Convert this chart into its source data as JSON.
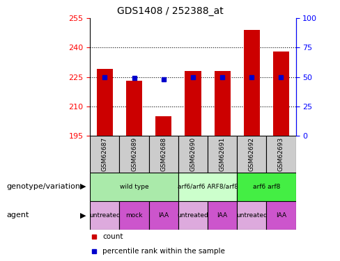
{
  "title": "GDS1408 / 252388_at",
  "samples": [
    "GSM62687",
    "GSM62689",
    "GSM62688",
    "GSM62690",
    "GSM62691",
    "GSM62692",
    "GSM62693"
  ],
  "bar_values": [
    229,
    223,
    205,
    228,
    228,
    249,
    238
  ],
  "percentile_values": [
    50,
    49,
    48,
    50,
    50,
    50,
    50
  ],
  "ylim_left": [
    195,
    255
  ],
  "ylim_right": [
    0,
    100
  ],
  "yticks_left": [
    195,
    210,
    225,
    240,
    255
  ],
  "yticks_right": [
    0,
    25,
    50,
    75,
    100
  ],
  "bar_color": "#cc0000",
  "percentile_color": "#0000cc",
  "bar_width": 0.55,
  "genotype_groups": [
    {
      "label": "wild type",
      "span": [
        0,
        3
      ],
      "color": "#aaeaaa"
    },
    {
      "label": "arf6/arf6 ARF8/arf8",
      "span": [
        3,
        5
      ],
      "color": "#ccffcc"
    },
    {
      "label": "arf6 arf8",
      "span": [
        5,
        7
      ],
      "color": "#44ee44"
    }
  ],
  "agent_groups": [
    {
      "label": "untreated",
      "span": [
        0,
        1
      ],
      "color": "#ddaadd"
    },
    {
      "label": "mock",
      "span": [
        1,
        2
      ],
      "color": "#cc55cc"
    },
    {
      "label": "IAA",
      "span": [
        2,
        3
      ],
      "color": "#cc55cc"
    },
    {
      "label": "untreated",
      "span": [
        3,
        4
      ],
      "color": "#ddaadd"
    },
    {
      "label": "IAA",
      "span": [
        4,
        5
      ],
      "color": "#cc55cc"
    },
    {
      "label": "untreated",
      "span": [
        5,
        6
      ],
      "color": "#ddaadd"
    },
    {
      "label": "IAA",
      "span": [
        6,
        7
      ],
      "color": "#cc55cc"
    }
  ],
  "sample_bg_color": "#cccccc",
  "legend_bar_label": "count",
  "legend_pct_label": "percentile rank within the sample",
  "left_label_genotype": "genotype/variation",
  "left_label_agent": "agent"
}
